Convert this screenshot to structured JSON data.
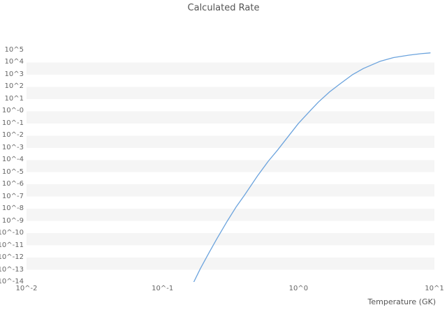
{
  "title": "Calculated Rate",
  "chart_data": {
    "type": "line",
    "title": "Calculated Rate",
    "xlabel": "Temperature (GK)",
    "ylabel": "",
    "x_scale": "log",
    "y_scale": "log",
    "xlim_log": [
      -2,
      1
    ],
    "ylim_log": [
      -14,
      5
    ],
    "x_tick_labels": [
      "10^-2",
      "10^-1",
      "10^0",
      "10^1"
    ],
    "y_tick_labels": [
      "10^5",
      "10^4",
      "10^3",
      "10^2",
      "10^1",
      "10^-0",
      "10^-1",
      "10^-2",
      "10^-3",
      "10^-4",
      "10^-5",
      "10^-6",
      "10^-7",
      "10^-8",
      "10^-9",
      "10^-10",
      "10^-11",
      "10^-12",
      "10^-13",
      "10^-14"
    ],
    "grid": "horizontal-bands",
    "band_colors": [
      "#ffffff",
      "#f5f5f5"
    ],
    "legend": "none",
    "series": [
      {
        "name": "calculated-rate",
        "color": "#6ba3dd",
        "x_units": "GK",
        "x": [
          0.17,
          0.19,
          0.22,
          0.25,
          0.3,
          0.35,
          0.4,
          0.5,
          0.6,
          0.7,
          0.85,
          1.0,
          1.2,
          1.4,
          1.7,
          2.0,
          2.5,
          3.0,
          4.0,
          5.0,
          6.5,
          8.0,
          9.3
        ],
        "log10_y": [
          -14.0,
          -12.9,
          -11.6,
          -10.5,
          -9.0,
          -7.8,
          -6.9,
          -5.3,
          -4.1,
          -3.2,
          -2.0,
          -1.0,
          -0.05,
          0.75,
          1.6,
          2.2,
          3.0,
          3.5,
          4.1,
          4.4,
          4.6,
          4.72,
          4.78
        ]
      }
    ]
  }
}
